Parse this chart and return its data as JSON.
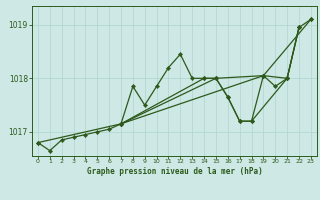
{
  "title": "Graphe pression niveau de la mer (hPa)",
  "bg_color": "#cde8e5",
  "grid_color": "#b0d4d0",
  "line_color": "#2d5a1b",
  "ylim": [
    1016.55,
    1019.35
  ],
  "yticks": [
    1017,
    1018,
    1019
  ],
  "xlim": [
    -0.5,
    23.5
  ],
  "xticks": [
    0,
    1,
    2,
    3,
    4,
    5,
    6,
    7,
    8,
    9,
    10,
    11,
    12,
    13,
    14,
    15,
    16,
    17,
    18,
    19,
    20,
    21,
    22,
    23
  ],
  "main_line": {
    "x": [
      0,
      1,
      2,
      3,
      4,
      5,
      6,
      7,
      8,
      9,
      10,
      11,
      12,
      13,
      14,
      15,
      16,
      17,
      18,
      19,
      20,
      21,
      22,
      23
    ],
    "y": [
      1016.8,
      1016.65,
      1016.85,
      1016.9,
      1016.95,
      1017.0,
      1017.05,
      1017.15,
      1017.85,
      1017.5,
      1017.85,
      1018.2,
      1018.45,
      1018.0,
      1018.0,
      1018.0,
      1017.65,
      1017.2,
      1017.2,
      1018.05,
      1017.85,
      1018.0,
      1018.95,
      1019.1
    ]
  },
  "extra_lines": [
    {
      "x": [
        0,
        7,
        19,
        23
      ],
      "y": [
        1016.8,
        1017.15,
        1018.05,
        1019.1
      ]
    },
    {
      "x": [
        7,
        15,
        16,
        17,
        18,
        21,
        22
      ],
      "y": [
        1017.15,
        1018.0,
        1017.65,
        1017.2,
        1017.2,
        1018.0,
        1018.95
      ]
    },
    {
      "x": [
        7,
        14,
        15,
        19,
        21,
        22
      ],
      "y": [
        1017.15,
        1018.0,
        1018.0,
        1018.05,
        1018.0,
        1018.95
      ]
    }
  ]
}
